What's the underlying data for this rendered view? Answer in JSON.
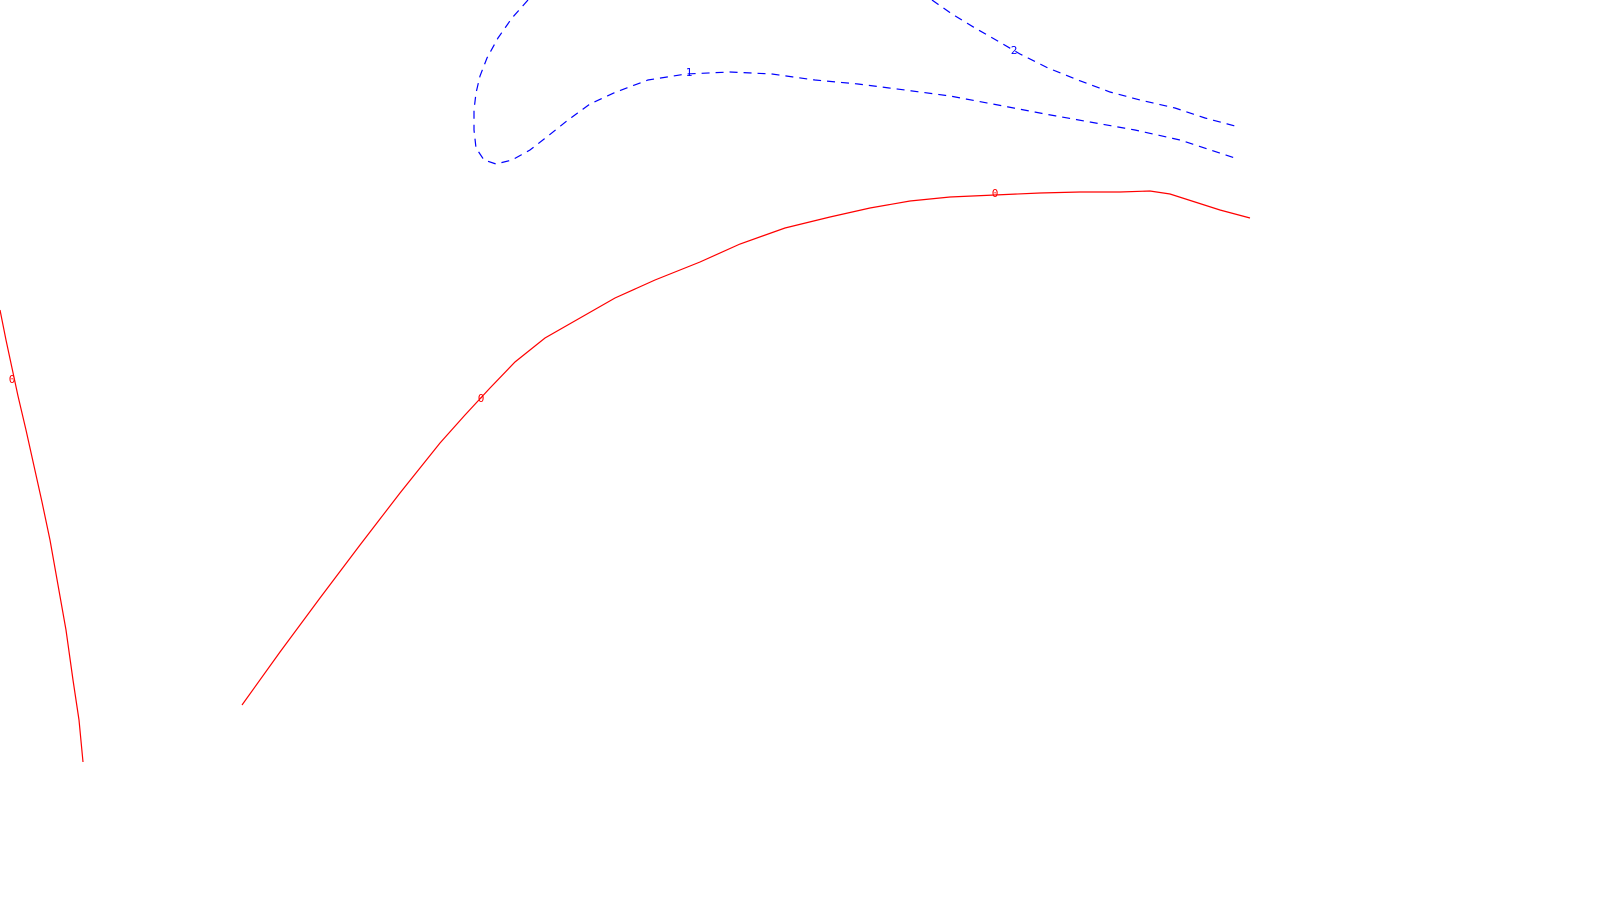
{
  "contour_plot": {
    "colors": {
      "zero_level": "#ff0000",
      "positive_level": "#0000ff",
      "background": "#ffffff"
    },
    "line_styles": {
      "zero_level": "solid",
      "positive_level": "dashed"
    },
    "contours": [
      {
        "name": "contour-zero-left",
        "level_label": "0",
        "style": "solid",
        "color_key": "zero_level"
      },
      {
        "name": "contour-zero-main",
        "level_label": "0",
        "style": "solid",
        "color_key": "zero_level"
      },
      {
        "name": "contour-one",
        "level_label": "1",
        "style": "dashed",
        "color_key": "positive_level"
      },
      {
        "name": "contour-two",
        "level_label": "2",
        "style": "dashed",
        "color_key": "positive_level"
      }
    ],
    "labels": {
      "zero_left": "0",
      "zero_mid": "0",
      "zero_right": "0",
      "one": "1",
      "two": "2"
    }
  }
}
